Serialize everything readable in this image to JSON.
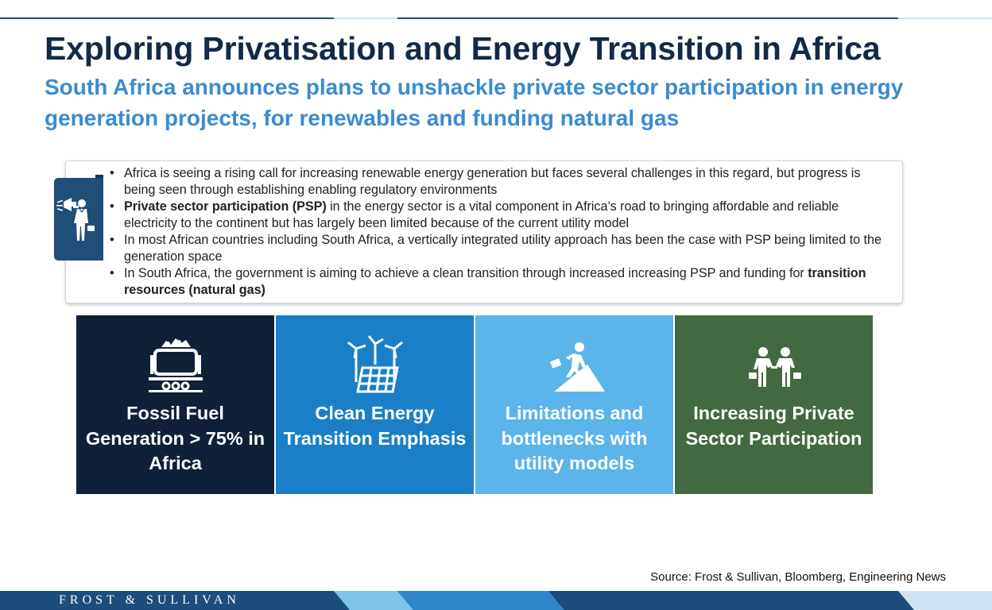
{
  "title": "Exploring Privatisation and Energy Transition in Africa",
  "subtitle": "South Africa announces plans to unshackle private sector participation in energy generation projects, for renewables and funding natural gas",
  "bullets": [
    {
      "pre": "Africa is seeing a rising call for increasing renewable energy generation but faces several challenges in this regard, but progress is being seen through establishing enabling regulatory environments",
      "bold": "",
      "post": ""
    },
    {
      "pre": "",
      "bold": "Private sector participation (PSP)",
      "post": "  in the energy sector is a vital component in Africa’s road to bringing affordable and reliable electricity to the continent but has largely been limited because of the current utility model"
    },
    {
      "pre": "In most African countries including South Africa, a vertically integrated utility approach has been the case with PSP being limited to the generation space",
      "bold": "",
      "post": ""
    },
    {
      "pre": "In South Africa, the government is aiming to achieve a clean transition through increased increasing PSP and funding for ",
      "bold": "transition resources (natural gas)",
      "post": ""
    }
  ],
  "tiles": [
    {
      "label": "Fossil Fuel Generation > 75% in Africa",
      "icon": "coal-cart-icon",
      "color": "#0f2038"
    },
    {
      "label": "Clean Energy Transition Emphasis",
      "icon": "wind-solar-icon",
      "color": "#1a7fc6"
    },
    {
      "label": "Limitations and bottlenecks with utility models",
      "icon": "climbing-person-icon",
      "color": "#5bb4ea"
    },
    {
      "label": "Increasing Private Sector Participation",
      "icon": "business-handshake-icon",
      "color": "#426941"
    }
  ],
  "source": "Source: Frost & Sullivan, Bloomberg, Engineering News",
  "footer": {
    "brand": "FROST & SULLIVAN"
  },
  "colors": {
    "title": "#132a47",
    "subtitle": "#3a8bd2",
    "footer": "#1b4d7e"
  }
}
